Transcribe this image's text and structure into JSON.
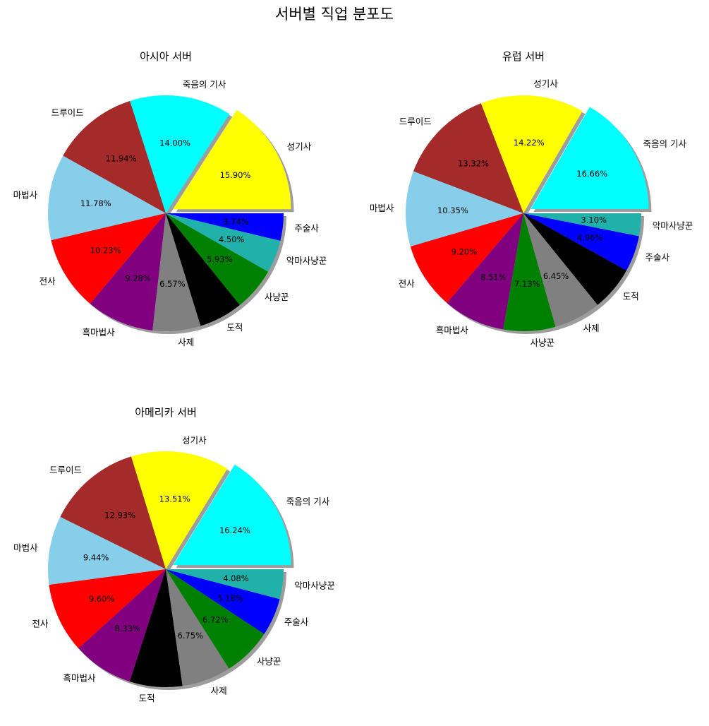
{
  "figure": {
    "title": "서버별 직업 분포도"
  },
  "colors": {
    "성기사": "#ffff00",
    "죽음의 기사": "#00ffff",
    "드루이드": "#a52a2a",
    "마법사": "#87ceeb",
    "전사": "#ff0000",
    "흑마법사": "#800080",
    "사제": "#808080",
    "도적": "#000000",
    "사냥꾼": "#008000",
    "악마사냥꾼": "#20b2aa",
    "주술사": "#0000ff"
  },
  "chart_data": [
    {
      "type": "pie",
      "title": "아시아 서버",
      "categories": [
        "성기사",
        "죽음의 기사",
        "드루이드",
        "마법사",
        "전사",
        "흑마법사",
        "사제",
        "도적",
        "사냥꾼",
        "악마사냥꾼",
        "주술사"
      ],
      "values": [
        15.9,
        14.0,
        11.94,
        11.78,
        10.23,
        9.28,
        6.57,
        6.03,
        5.93,
        4.5,
        3.74
      ],
      "percent_labels": [
        "15.90%",
        "14.00%",
        "11.94%",
        "11.78%",
        "10.23%",
        "9.28%",
        "6.57%",
        "",
        "5.93%",
        "4.50%",
        "3.74%"
      ],
      "explode": "largest slice",
      "shadow": true,
      "start_angle_deg": 0,
      "direction": "counterclockwise"
    },
    {
      "type": "pie",
      "title": "유럽 서버",
      "categories": [
        "죽음의 기사",
        "성기사",
        "드루이드",
        "마법사",
        "전사",
        "흑마법사",
        "사냥꾼",
        "사제",
        "도적",
        "주술사",
        "악마사냥꾼"
      ],
      "values": [
        16.66,
        14.22,
        13.32,
        10.35,
        9.2,
        8.51,
        7.13,
        6.45,
        6.1,
        4.96,
        3.1
      ],
      "percent_labels": [
        "16.66%",
        "14.22%",
        "13.32%",
        "10.35%",
        "9.20%",
        "8.51%",
        "7.13%",
        "6.45%",
        "",
        "4.96%",
        "3.10%"
      ],
      "explode": "largest slice",
      "shadow": true,
      "start_angle_deg": 0,
      "direction": "counterclockwise"
    },
    {
      "type": "pie",
      "title": "아메리카 서버",
      "categories": [
        "죽음의 기사",
        "성기사",
        "드루이드",
        "마법사",
        "전사",
        "흑마법사",
        "도적",
        "사제",
        "사냥꾼",
        "주술사",
        "악마사냥꾼"
      ],
      "values": [
        16.24,
        13.51,
        12.93,
        9.44,
        9.6,
        8.33,
        7.22,
        6.75,
        6.72,
        5.18,
        4.08
      ],
      "percent_labels": [
        "16.24%",
        "13.51%",
        "12.93%",
        "9.44%",
        "9.60%",
        "8.33%",
        "",
        "6.75%",
        "6.72%",
        "5.18%",
        "4.08%"
      ],
      "explode": "largest slice",
      "shadow": true,
      "start_angle_deg": 0,
      "direction": "counterclockwise"
    }
  ]
}
